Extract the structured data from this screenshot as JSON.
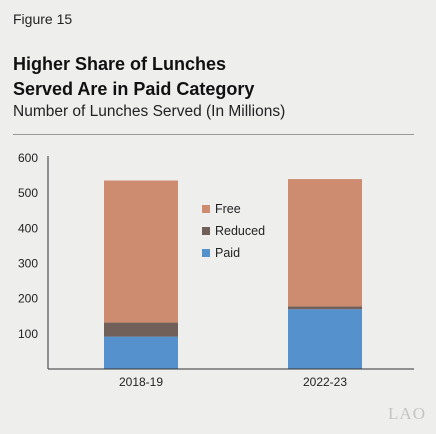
{
  "figure_label": "Figure 15",
  "title_line1": "Higher Share of Lunches",
  "title_line2": "Served Are in Paid Category",
  "subtitle": "Number of Lunches Served (In Millions)",
  "watermark": "LAO",
  "chart_data": {
    "type": "bar",
    "stacked": true,
    "categories": [
      "2018-19",
      "2022-23"
    ],
    "series": [
      {
        "name": "Paid",
        "values": [
          92,
          170
        ],
        "color": "#5591cc"
      },
      {
        "name": "Reduced",
        "values": [
          40,
          8
        ],
        "color": "#71605a"
      },
      {
        "name": "Free",
        "values": [
          404,
          362
        ],
        "color": "#cd8b70"
      }
    ],
    "yticks": [
      100,
      200,
      300,
      400,
      500,
      600
    ],
    "ylim": [
      0,
      600
    ],
    "grid": false,
    "legend_position": "inside-center",
    "legend_order": [
      "Free",
      "Reduced",
      "Paid"
    ]
  }
}
